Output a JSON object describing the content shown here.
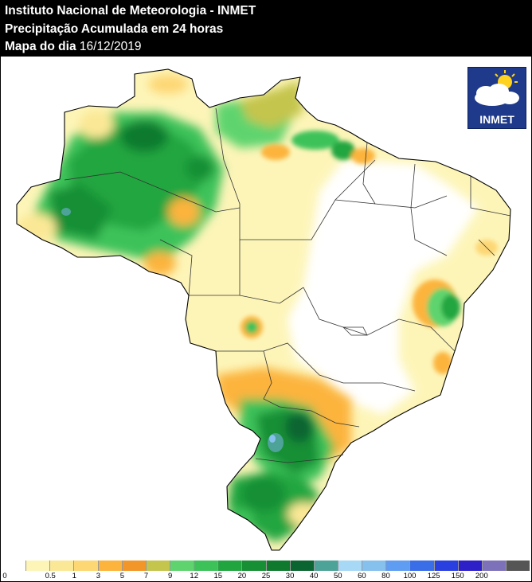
{
  "header": {
    "line1": "Instituto Nacional de Meteorologia - INMET",
    "line2": "Precipitação Acumulada em 24 horas",
    "line3_prefix": "Mapa do dia",
    "line3_date": "16/12/2019"
  },
  "logo": {
    "text": "INMET",
    "icon": "cloud-sun-icon"
  },
  "legend": {
    "colors": [
      "#ffffff",
      "#fdf5b8",
      "#fbe896",
      "#fdd774",
      "#fcb43c",
      "#f2962a",
      "#c4c54d",
      "#5fd46e",
      "#3dc25a",
      "#21a63f",
      "#178f34",
      "#0f7a2d",
      "#0b6530",
      "#4ea398",
      "#a7d8f5",
      "#86c1ee",
      "#5f9df2",
      "#3a6ee8",
      "#2a3fe0",
      "#2d20c9",
      "#7d72ba",
      "#555555"
    ],
    "labels": [
      "0",
      "0.5",
      "1",
      "3",
      "5",
      "7",
      "9",
      "12",
      "15",
      "20",
      "25",
      "30",
      "40",
      "50",
      "60",
      "80",
      "100",
      "125",
      "150",
      "200"
    ]
  }
}
